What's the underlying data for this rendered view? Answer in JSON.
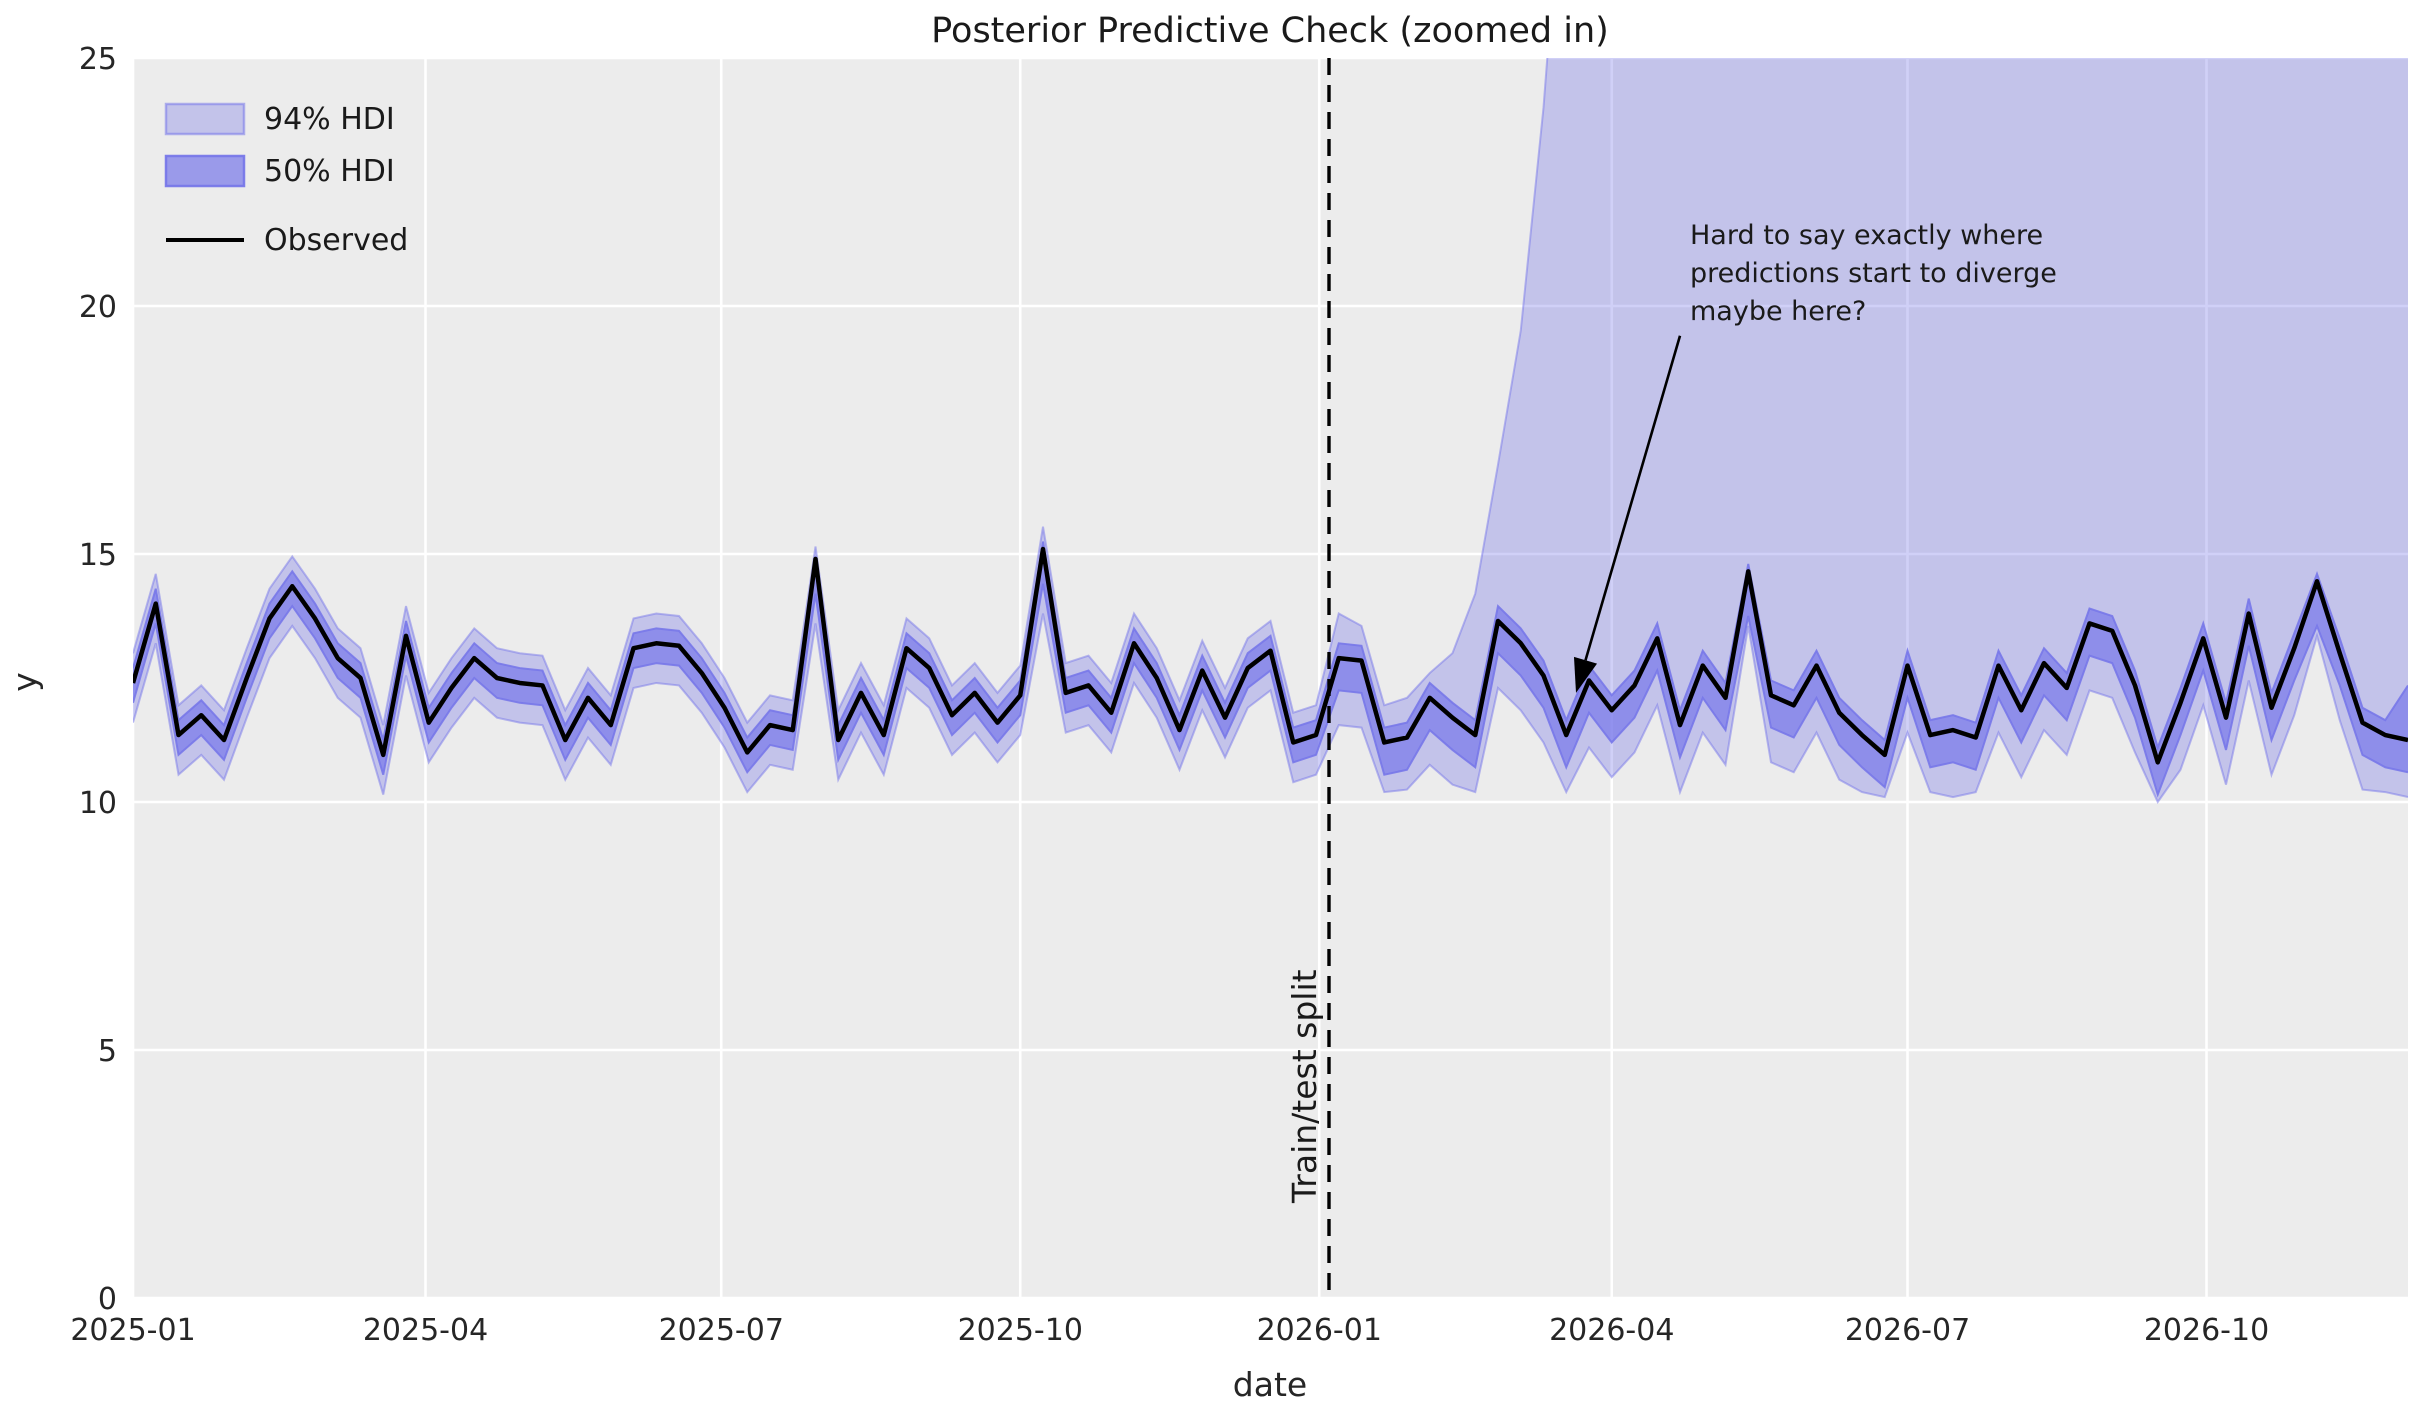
{
  "title": "Posterior Predictive Check (zoomed in)",
  "axes": {
    "xlabel": "date",
    "ylabel": "y"
  },
  "legend": {
    "items": [
      {
        "label": "94% HDI",
        "swatch": "patch-light"
      },
      {
        "label": "50% HDI",
        "swatch": "patch-dark"
      },
      {
        "label": "Observed",
        "swatch": "line"
      }
    ]
  },
  "annotation": {
    "lines": [
      "Hard to say exactly where",
      "predictions start to diverge",
      "maybe here?"
    ],
    "arrow_start": {
      "day": 476,
      "value": 19.4
    },
    "arrow_tip": {
      "day": 444,
      "value": 12.2
    }
  },
  "split": {
    "label": "Train/test split"
  },
  "colors": {
    "band_base": "#7878e9",
    "band94_fill_opacity": 0.35,
    "band94_edge_opacity": 0.5,
    "band50_fill_opacity": 0.7,
    "band50_edge_opacity": 0.9,
    "observed": "#000000",
    "split_line": "#000000",
    "plot_bg": "#ececec",
    "grid": "#ffffff",
    "text": "#262626"
  },
  "chart_data": {
    "type": "line",
    "title": "Posterior Predictive Check (zoomed in)",
    "xlabel": "date",
    "ylabel": "y",
    "x_start_date": "2025-01-01",
    "x_step_days": 7,
    "x_total_days": 700,
    "ylim": [
      0,
      25
    ],
    "y_ticks": [
      0,
      5,
      10,
      15,
      20,
      25
    ],
    "x_ticks": [
      {
        "day": 0,
        "label": "2025-01"
      },
      {
        "day": 90,
        "label": "2025-04"
      },
      {
        "day": 181,
        "label": "2025-07"
      },
      {
        "day": 273,
        "label": "2025-10"
      },
      {
        "day": 365,
        "label": "2026-01"
      },
      {
        "day": 455,
        "label": "2026-04"
      },
      {
        "day": 546,
        "label": "2026-07"
      },
      {
        "day": 638,
        "label": "2026-10"
      }
    ],
    "split_day": 368,
    "observed": [
      12.4,
      14.0,
      11.35,
      11.75,
      11.25,
      12.5,
      13.7,
      14.35,
      13.7,
      12.9,
      12.5,
      10.95,
      13.35,
      11.6,
      12.3,
      12.9,
      12.5,
      12.4,
      12.35,
      11.25,
      12.1,
      11.55,
      13.1,
      13.2,
      13.15,
      12.6,
      11.9,
      11.0,
      11.55,
      11.45,
      14.9,
      11.25,
      12.2,
      11.35,
      13.1,
      12.7,
      11.75,
      12.2,
      11.6,
      12.15,
      15.1,
      12.2,
      12.35,
      11.8,
      13.2,
      12.5,
      11.45,
      12.65,
      11.7,
      12.7,
      13.05,
      11.2,
      11.35,
      12.9,
      12.85,
      11.2,
      11.3,
      12.1,
      11.7,
      11.35,
      13.65,
      13.2,
      12.55,
      11.35,
      12.45,
      11.85,
      12.35,
      13.3,
      11.55,
      12.75,
      12.1,
      14.65,
      12.15,
      11.95,
      12.75,
      11.8,
      11.35,
      10.95,
      12.75,
      11.35,
      11.45,
      11.3,
      12.75,
      11.85,
      12.8,
      12.3,
      13.6,
      13.45,
      12.35,
      10.8,
      12.0,
      13.3,
      11.7,
      13.8,
      11.9,
      13.1,
      14.45,
      13.0,
      11.6,
      11.35,
      11.25
    ],
    "hdi94_upper": [
      13.0,
      14.6,
      11.95,
      12.35,
      11.85,
      13.1,
      14.3,
      14.95,
      14.3,
      13.5,
      13.1,
      11.55,
      13.95,
      12.2,
      12.9,
      13.5,
      13.1,
      13.0,
      12.95,
      11.85,
      12.7,
      12.15,
      13.7,
      13.8,
      13.75,
      13.2,
      12.5,
      11.6,
      12.15,
      12.05,
      15.15,
      11.85,
      12.8,
      11.95,
      13.7,
      13.3,
      12.35,
      12.8,
      12.2,
      12.75,
      15.55,
      12.8,
      12.95,
      12.4,
      13.8,
      13.1,
      12.05,
      13.25,
      12.3,
      13.3,
      13.65,
      11.8,
      11.95,
      13.8,
      13.55,
      11.95,
      12.1,
      12.6,
      13.0,
      14.2,
      16.8,
      19.5,
      24,
      30,
      37,
      45,
      53,
      61,
      69,
      77,
      85,
      92,
      99,
      106,
      112,
      118,
      124,
      130,
      136,
      141,
      146,
      151,
      156,
      161,
      166,
      170,
      174,
      178,
      182,
      186,
      190,
      194,
      198,
      201,
      204,
      207,
      210,
      213,
      216,
      219,
      222
    ],
    "hdi94_lower": [
      11.6,
      13.2,
      10.55,
      10.95,
      10.45,
      11.7,
      12.9,
      13.55,
      12.9,
      12.1,
      11.7,
      10.15,
      12.55,
      10.8,
      11.5,
      12.1,
      11.7,
      11.6,
      11.55,
      10.45,
      11.3,
      10.75,
      12.3,
      12.4,
      12.35,
      11.8,
      11.1,
      10.2,
      10.75,
      10.65,
      13.6,
      10.45,
      11.4,
      10.55,
      12.3,
      11.9,
      10.95,
      11.4,
      10.8,
      11.35,
      13.8,
      11.4,
      11.55,
      11.0,
      12.4,
      11.7,
      10.65,
      11.85,
      10.9,
      11.9,
      12.25,
      10.4,
      10.55,
      11.55,
      11.5,
      10.2,
      10.25,
      10.75,
      10.35,
      10.2,
      12.3,
      11.85,
      11.2,
      10.2,
      11.1,
      10.5,
      11.0,
      11.95,
      10.2,
      11.4,
      10.75,
      13.55,
      10.8,
      10.6,
      11.4,
      10.45,
      10.2,
      10.1,
      11.4,
      10.2,
      10.1,
      10.2,
      11.4,
      10.5,
      11.45,
      10.95,
      12.25,
      12.1,
      11.0,
      10.0,
      10.65,
      11.95,
      10.35,
      12.45,
      10.55,
      11.75,
      13.35,
      11.65,
      10.25,
      10.2,
      10.1
    ],
    "hdi50_upper": [
      12.7,
      14.3,
      11.65,
      12.05,
      11.55,
      12.8,
      14.0,
      14.65,
      14.0,
      13.2,
      12.8,
      11.25,
      13.65,
      11.9,
      12.6,
      13.2,
      12.8,
      12.7,
      12.65,
      11.55,
      12.4,
      11.85,
      13.4,
      13.5,
      13.45,
      12.9,
      12.2,
      11.3,
      11.85,
      11.75,
      14.95,
      11.55,
      12.5,
      11.65,
      13.4,
      13.0,
      12.05,
      12.5,
      11.9,
      12.45,
      15.25,
      12.5,
      12.65,
      12.1,
      13.5,
      12.8,
      11.75,
      12.95,
      12.0,
      13.0,
      13.35,
      11.5,
      11.65,
      13.2,
      13.15,
      11.5,
      11.6,
      12.4,
      12.0,
      11.65,
      13.95,
      13.5,
      12.85,
      11.65,
      12.75,
      12.15,
      12.65,
      13.6,
      11.85,
      13.05,
      12.4,
      14.8,
      12.45,
      12.25,
      13.05,
      12.1,
      11.65,
      11.25,
      13.05,
      11.65,
      11.75,
      11.6,
      13.05,
      12.15,
      13.1,
      12.6,
      13.9,
      13.75,
      12.65,
      11.1,
      12.3,
      13.6,
      12.0,
      14.1,
      12.2,
      13.4,
      14.6,
      13.3,
      11.9,
      11.65,
      12.35
    ],
    "hdi50_lower": [
      12.0,
      13.6,
      10.95,
      11.35,
      10.85,
      12.1,
      13.3,
      13.95,
      13.3,
      12.5,
      12.1,
      10.55,
      12.95,
      11.2,
      11.9,
      12.5,
      12.1,
      12.0,
      11.95,
      10.85,
      11.7,
      11.15,
      12.7,
      12.8,
      12.75,
      12.2,
      11.5,
      10.6,
      11.15,
      11.05,
      14.2,
      10.85,
      11.8,
      10.95,
      12.7,
      12.3,
      11.35,
      11.8,
      11.2,
      11.75,
      14.4,
      11.8,
      11.95,
      11.4,
      12.8,
      12.1,
      11.05,
      12.25,
      11.3,
      12.3,
      12.65,
      10.8,
      10.95,
      12.25,
      12.2,
      10.55,
      10.65,
      11.45,
      11.05,
      10.7,
      13.0,
      12.55,
      11.9,
      10.7,
      11.8,
      11.2,
      11.7,
      12.65,
      10.9,
      12.1,
      11.45,
      13.75,
      11.5,
      11.3,
      12.1,
      11.15,
      10.7,
      10.3,
      12.1,
      10.7,
      10.8,
      10.65,
      12.1,
      11.2,
      12.15,
      11.65,
      12.95,
      12.8,
      11.7,
      10.15,
      11.35,
      12.65,
      11.05,
      13.15,
      11.25,
      12.45,
      13.55,
      12.35,
      10.95,
      10.7,
      10.6
    ]
  }
}
